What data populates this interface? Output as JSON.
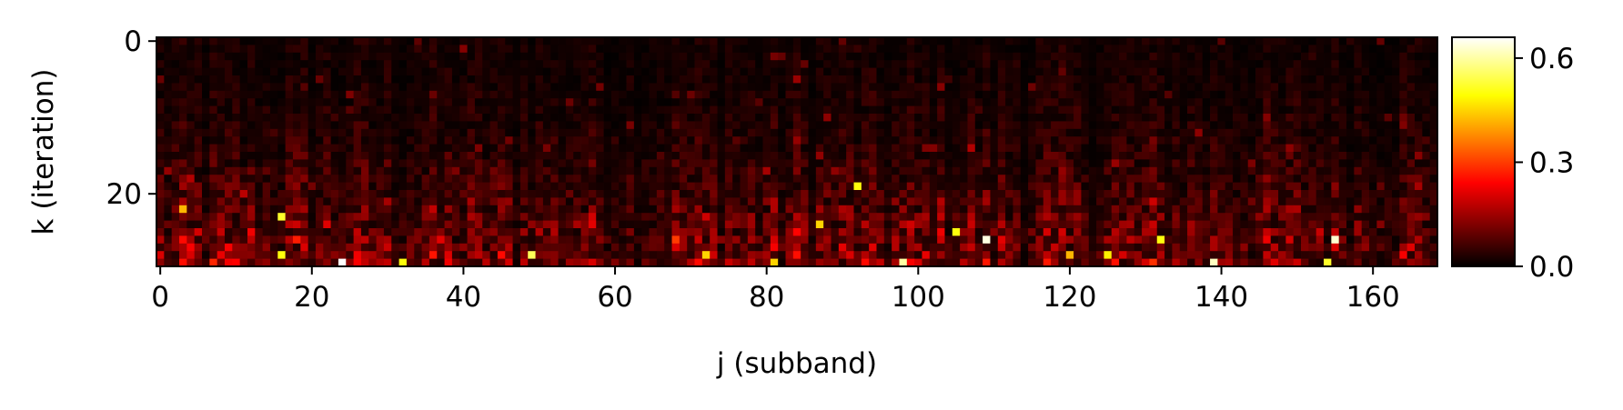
{
  "chart_data": {
    "type": "heatmap",
    "title": "",
    "xlabel": "j (subband)",
    "ylabel": "k (iteration)",
    "x_range": [
      0,
      169
    ],
    "y_range": [
      0,
      30
    ],
    "y_inverted": true,
    "x_ticks": [
      0,
      20,
      40,
      60,
      80,
      100,
      120,
      140,
      160
    ],
    "y_ticks": [
      0,
      20
    ],
    "x_tick_labels": [
      "0",
      "20",
      "40",
      "60",
      "80",
      "100",
      "120",
      "140",
      "160"
    ],
    "y_tick_labels": [
      "0",
      "20"
    ],
    "colormap": "hot",
    "colormap_stops": [
      "#000000",
      "#ff0000",
      "#ffff00",
      "#ffffff"
    ],
    "value_range": [
      0.0,
      0.66
    ],
    "colorbar": {
      "ticks": [
        0.0,
        0.3,
        0.6
      ],
      "tick_labels": [
        "0.0",
        "0.3",
        "0.6"
      ],
      "placement": "right"
    },
    "grid": false,
    "data_note_bright_cells": [
      {
        "j": 3,
        "k": 22,
        "v": 0.42
      },
      {
        "j": 16,
        "k": 23,
        "v": 0.52
      },
      {
        "j": 16,
        "k": 28,
        "v": 0.5
      },
      {
        "j": 24,
        "k": 29,
        "v": 0.66
      },
      {
        "j": 32,
        "k": 29,
        "v": 0.5
      },
      {
        "j": 49,
        "k": 28,
        "v": 0.55
      },
      {
        "j": 72,
        "k": 28,
        "v": 0.45
      },
      {
        "j": 81,
        "k": 29,
        "v": 0.45
      },
      {
        "j": 87,
        "k": 24,
        "v": 0.45
      },
      {
        "j": 92,
        "k": 19,
        "v": 0.5
      },
      {
        "j": 98,
        "k": 29,
        "v": 0.6
      },
      {
        "j": 105,
        "k": 25,
        "v": 0.5
      },
      {
        "j": 109,
        "k": 26,
        "v": 0.64
      },
      {
        "j": 120,
        "k": 28,
        "v": 0.42
      },
      {
        "j": 125,
        "k": 28,
        "v": 0.48
      },
      {
        "j": 132,
        "k": 26,
        "v": 0.5
      },
      {
        "j": 139,
        "k": 29,
        "v": 0.62
      },
      {
        "j": 154,
        "k": 29,
        "v": 0.52
      },
      {
        "j": 155,
        "k": 26,
        "v": 0.63
      }
    ]
  }
}
